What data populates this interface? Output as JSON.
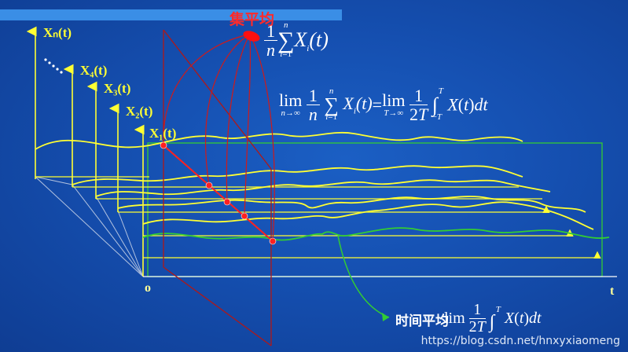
{
  "title_bar_color": "#3a8ee6",
  "colors": {
    "accent_yellow": "#ffff33",
    "green": "#33cc33",
    "red": "#ff2020",
    "dark_red": "#b01818"
  },
  "labels": {
    "ensemble_average": "集平均",
    "time_average": "时间平均",
    "origin": "o",
    "t_axis": "t"
  },
  "axes": {
    "xn": "Xₙ(t)",
    "x4": "X₄(t)",
    "x3": "X₃(t)",
    "x2": "X₂(t)",
    "x1": "X₁(t)"
  },
  "formulas": {
    "ensemble_mean": "1/n Σ_{i=1}^{n} X_i(t)",
    "equality": "lim_{n→∞} 1/n Σ_{i=1}^{n} X_i(t) = lim_{T→∞} 1/(2T) ∫_{−T}^{T} X(t) dt",
    "time_mean": "lim 1/(2T) ∫^{T} X(t) dt"
  },
  "watermark": "https://blog.csdn.net/hnxyxiaomeng"
}
